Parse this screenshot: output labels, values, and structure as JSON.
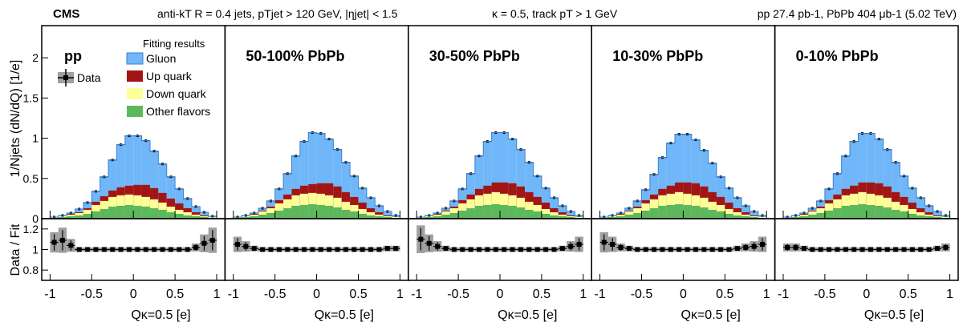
{
  "header": {
    "experiment": "CMS",
    "jets": "anti-kT R = 0.4 jets, pTjet > 120 GeV, |ηjet| < 1.5",
    "kappa": "κ = 0.5, track pT > 1 GeV",
    "lumi": "pp 27.4 pb-1, PbPb 404 μb-1 (5.02 TeV)"
  },
  "legend": {
    "title": "Fitting results",
    "data": "Data",
    "gluon": "Gluon",
    "up": "Up quark",
    "down": "Down quark",
    "other": "Other flavors"
  },
  "colors": {
    "gluon": "#6fb7f8",
    "up": "#a31515",
    "down": "#ffff99",
    "other": "#5cb85c",
    "ratio_band": "#a0a0a0"
  },
  "axis_labels": {
    "top_y": "1/Njets (dN/dQ) [1/e]",
    "ratio_y": "Data / Fit",
    "x": "Qκ=0.5 [e]"
  },
  "chart_data": {
    "type": "area",
    "description_stack": [
      "Other flavors",
      "Down quark",
      "Up quark",
      "Gluon"
    ],
    "x_bins_center": [
      -0.95,
      -0.85,
      -0.75,
      -0.65,
      -0.55,
      -0.45,
      -0.35,
      -0.25,
      -0.15,
      -0.05,
      0.05,
      0.15,
      0.25,
      0.35,
      0.45,
      0.55,
      0.65,
      0.75,
      0.85,
      0.95
    ],
    "xlim": [
      -1.1,
      1.1
    ],
    "ylim": [
      0,
      2.4
    ],
    "ratio_ylim": [
      0.7,
      1.3
    ],
    "x_ticks": [
      -1,
      -0.5,
      0,
      0.5,
      1
    ],
    "y_ticks": [
      0,
      0.5,
      1,
      1.5,
      2
    ],
    "ratio_y_ticks": [
      0.8,
      1,
      1.2
    ],
    "panels": [
      {
        "label": "pp",
        "total": [
          0.02,
          0.04,
          0.07,
          0.12,
          0.2,
          0.34,
          0.52,
          0.73,
          0.92,
          1.03,
          1.03,
          0.97,
          0.84,
          0.68,
          0.52,
          0.37,
          0.25,
          0.15,
          0.08,
          0.03
        ],
        "other": [
          0.01,
          0.02,
          0.03,
          0.04,
          0.06,
          0.09,
          0.12,
          0.15,
          0.16,
          0.17,
          0.16,
          0.15,
          0.13,
          0.11,
          0.08,
          0.06,
          0.04,
          0.03,
          0.02,
          0.01
        ],
        "down": [
          0.01,
          0.01,
          0.02,
          0.03,
          0.05,
          0.08,
          0.1,
          0.12,
          0.13,
          0.13,
          0.13,
          0.12,
          0.11,
          0.09,
          0.07,
          0.05,
          0.04,
          0.02,
          0.01,
          0.01
        ],
        "up": [
          0.0,
          0.0,
          0.01,
          0.01,
          0.02,
          0.04,
          0.06,
          0.08,
          0.1,
          0.11,
          0.13,
          0.15,
          0.14,
          0.12,
          0.1,
          0.08,
          0.05,
          0.03,
          0.01,
          0.0
        ],
        "ratio": [
          1.07,
          1.09,
          1.04,
          1.0,
          1.0,
          1.0,
          1.0,
          1.0,
          1.0,
          1.0,
          1.0,
          1.0,
          1.0,
          1.0,
          1.0,
          1.0,
          1.0,
          1.02,
          1.06,
          1.09
        ]
      },
      {
        "label": "50-100% PbPb",
        "total": [
          0.02,
          0.04,
          0.07,
          0.13,
          0.22,
          0.37,
          0.56,
          0.78,
          0.96,
          1.07,
          1.06,
          0.99,
          0.86,
          0.7,
          0.53,
          0.38,
          0.26,
          0.16,
          0.09,
          0.04
        ],
        "other": [
          0.01,
          0.02,
          0.03,
          0.05,
          0.07,
          0.1,
          0.13,
          0.16,
          0.17,
          0.18,
          0.17,
          0.16,
          0.14,
          0.11,
          0.09,
          0.06,
          0.04,
          0.03,
          0.02,
          0.01
        ],
        "down": [
          0.01,
          0.01,
          0.02,
          0.04,
          0.06,
          0.09,
          0.11,
          0.13,
          0.14,
          0.14,
          0.14,
          0.13,
          0.12,
          0.1,
          0.08,
          0.06,
          0.04,
          0.02,
          0.01,
          0.01
        ],
        "up": [
          0.0,
          0.0,
          0.01,
          0.01,
          0.02,
          0.04,
          0.06,
          0.08,
          0.1,
          0.11,
          0.13,
          0.15,
          0.14,
          0.12,
          0.1,
          0.08,
          0.05,
          0.03,
          0.01,
          0.0
        ],
        "ratio": [
          1.05,
          1.03,
          1.01,
          1.0,
          1.0,
          1.0,
          1.0,
          1.0,
          1.0,
          1.0,
          1.0,
          1.0,
          1.0,
          1.0,
          1.0,
          1.0,
          1.0,
          1.0,
          1.01,
          1.01
        ]
      },
      {
        "label": "30-50% PbPb",
        "total": [
          0.02,
          0.04,
          0.07,
          0.13,
          0.22,
          0.37,
          0.56,
          0.78,
          0.96,
          1.07,
          1.07,
          0.99,
          0.86,
          0.7,
          0.53,
          0.38,
          0.26,
          0.16,
          0.09,
          0.04
        ],
        "other": [
          0.01,
          0.02,
          0.03,
          0.05,
          0.07,
          0.1,
          0.13,
          0.16,
          0.17,
          0.18,
          0.17,
          0.16,
          0.14,
          0.11,
          0.09,
          0.06,
          0.04,
          0.03,
          0.02,
          0.01
        ],
        "down": [
          0.01,
          0.01,
          0.02,
          0.04,
          0.06,
          0.09,
          0.11,
          0.13,
          0.14,
          0.15,
          0.14,
          0.13,
          0.12,
          0.1,
          0.08,
          0.06,
          0.04,
          0.02,
          0.01,
          0.01
        ],
        "up": [
          0.0,
          0.0,
          0.01,
          0.01,
          0.02,
          0.04,
          0.06,
          0.08,
          0.1,
          0.12,
          0.14,
          0.15,
          0.14,
          0.12,
          0.1,
          0.08,
          0.05,
          0.03,
          0.01,
          0.0
        ],
        "ratio": [
          1.1,
          1.06,
          1.03,
          1.01,
          1.0,
          1.0,
          1.0,
          1.0,
          1.0,
          1.0,
          1.0,
          1.0,
          1.0,
          1.0,
          1.0,
          1.0,
          1.0,
          1.01,
          1.03,
          1.05
        ]
      },
      {
        "label": "10-30% PbPb",
        "total": [
          0.02,
          0.04,
          0.07,
          0.13,
          0.22,
          0.36,
          0.55,
          0.76,
          0.94,
          1.05,
          1.05,
          0.98,
          0.85,
          0.69,
          0.52,
          0.38,
          0.26,
          0.16,
          0.09,
          0.04
        ],
        "other": [
          0.01,
          0.02,
          0.03,
          0.05,
          0.07,
          0.1,
          0.13,
          0.16,
          0.17,
          0.18,
          0.17,
          0.16,
          0.14,
          0.11,
          0.09,
          0.06,
          0.04,
          0.03,
          0.02,
          0.01
        ],
        "down": [
          0.01,
          0.01,
          0.02,
          0.04,
          0.06,
          0.09,
          0.11,
          0.13,
          0.14,
          0.15,
          0.14,
          0.13,
          0.12,
          0.1,
          0.08,
          0.06,
          0.04,
          0.02,
          0.01,
          0.01
        ],
        "up": [
          0.0,
          0.0,
          0.01,
          0.01,
          0.02,
          0.04,
          0.06,
          0.08,
          0.1,
          0.12,
          0.14,
          0.15,
          0.14,
          0.12,
          0.1,
          0.08,
          0.05,
          0.03,
          0.01,
          0.0
        ],
        "ratio": [
          1.07,
          1.05,
          1.02,
          1.01,
          1.0,
          1.0,
          1.0,
          1.0,
          1.0,
          1.0,
          1.0,
          1.0,
          1.0,
          1.0,
          1.0,
          1.0,
          1.01,
          1.02,
          1.03,
          1.05
        ]
      },
      {
        "label": "0-10% PbPb",
        "total": [
          0.02,
          0.04,
          0.07,
          0.13,
          0.22,
          0.37,
          0.56,
          0.78,
          0.96,
          1.06,
          1.06,
          0.99,
          0.86,
          0.7,
          0.53,
          0.38,
          0.26,
          0.16,
          0.09,
          0.04
        ],
        "other": [
          0.01,
          0.02,
          0.03,
          0.05,
          0.07,
          0.1,
          0.13,
          0.16,
          0.17,
          0.18,
          0.17,
          0.16,
          0.14,
          0.11,
          0.09,
          0.06,
          0.04,
          0.03,
          0.02,
          0.01
        ],
        "down": [
          0.01,
          0.01,
          0.02,
          0.04,
          0.06,
          0.09,
          0.11,
          0.13,
          0.14,
          0.15,
          0.14,
          0.13,
          0.12,
          0.1,
          0.08,
          0.06,
          0.04,
          0.02,
          0.01,
          0.01
        ],
        "up": [
          0.0,
          0.0,
          0.01,
          0.01,
          0.02,
          0.04,
          0.06,
          0.08,
          0.1,
          0.12,
          0.14,
          0.15,
          0.14,
          0.12,
          0.1,
          0.08,
          0.05,
          0.03,
          0.01,
          0.0
        ],
        "ratio": [
          1.02,
          1.02,
          1.01,
          1.0,
          1.0,
          1.0,
          1.0,
          1.0,
          1.0,
          1.0,
          1.0,
          1.0,
          1.0,
          1.0,
          1.0,
          1.0,
          1.0,
          1.0,
          1.01,
          1.02
        ]
      }
    ]
  }
}
